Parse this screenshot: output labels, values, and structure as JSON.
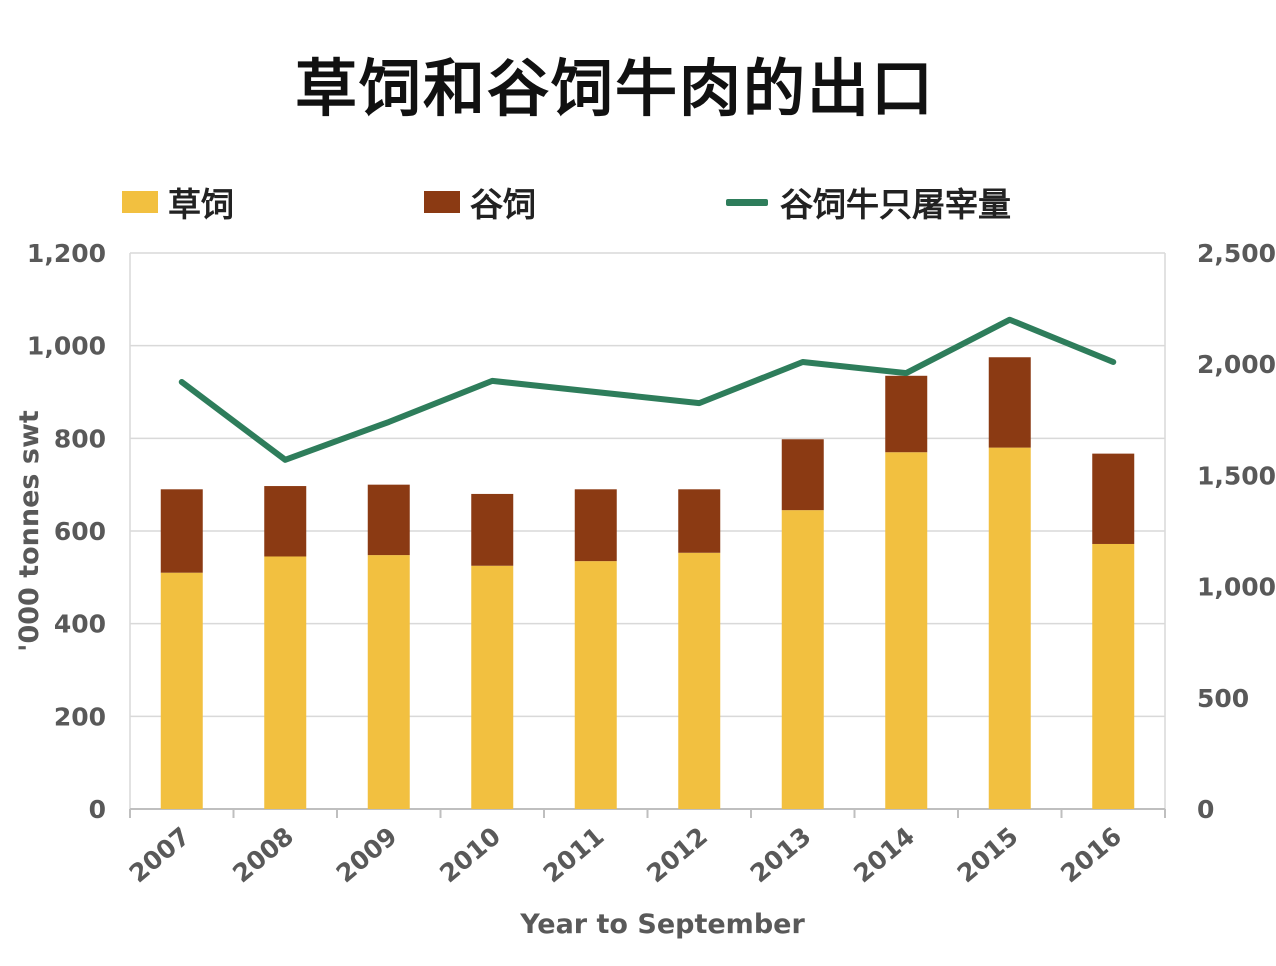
{
  "title": "草饲和谷饲牛肉的出口",
  "legend": [
    {
      "label": "草饲",
      "color": "#F2C040",
      "kind": "bar"
    },
    {
      "label": "谷饲",
      "color": "#8B3A13",
      "kind": "bar"
    },
    {
      "label": "谷饲牛只屠宰量",
      "color": "#2E7D5B",
      "kind": "line"
    }
  ],
  "chart_data": {
    "type": "bar",
    "stacked": true,
    "categories": [
      "2007",
      "2008",
      "2009",
      "2010",
      "2011",
      "2012",
      "2013",
      "2014",
      "2015",
      "2016"
    ],
    "series": [
      {
        "name": "草饲",
        "axis": "left",
        "type": "bar",
        "color": "#F2C040",
        "values": [
          510,
          545,
          548,
          525,
          535,
          553,
          645,
          770,
          780,
          572
        ]
      },
      {
        "name": "谷饲",
        "axis": "left",
        "type": "bar",
        "color": "#8B3A13",
        "values": [
          180,
          152,
          152,
          155,
          155,
          137,
          153,
          165,
          195,
          195
        ]
      },
      {
        "name": "谷饲牛只屠宰量",
        "axis": "right",
        "type": "line",
        "color": "#2E7D5B",
        "values": [
          1920,
          1570,
          1740,
          1925,
          1875,
          1825,
          2010,
          1960,
          2200,
          2010
        ]
      }
    ],
    "xlabel": "Year to September",
    "ylabel": "'000 tonnes swt",
    "ylabel_right": "",
    "ylim": [
      0,
      1200
    ],
    "ylim_right": [
      0,
      2500
    ],
    "yticks": [
      0,
      200,
      400,
      600,
      800,
      1000,
      1200
    ],
    "yticks_labels": [
      "0",
      "200",
      "400",
      "600",
      "800",
      "1,000",
      "1,200"
    ],
    "yticks_right": [
      0,
      500,
      1000,
      1500,
      2000,
      2500
    ],
    "yticks_right_labels": [
      "0",
      "500",
      "1,000",
      "1,500",
      "2,000",
      "2,500"
    ],
    "grid": true,
    "legend_position": "top"
  }
}
